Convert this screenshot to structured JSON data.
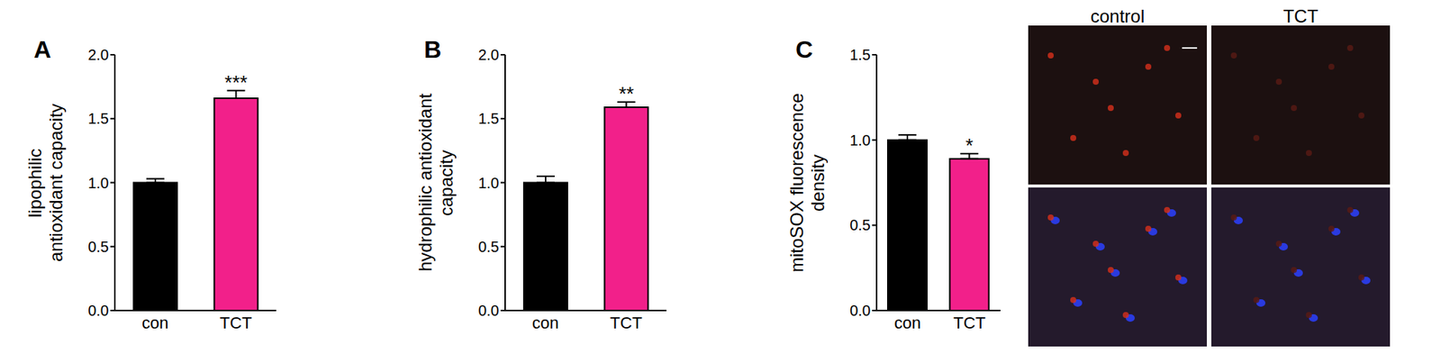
{
  "chart_data": [
    {
      "type": "bar",
      "title": "A",
      "ylabel": [
        "lipophilic",
        "antioxidant capacity"
      ],
      "categories": [
        "con",
        "TCT"
      ],
      "values": [
        1.0,
        1.66
      ],
      "errors": [
        0.03,
        0.06
      ],
      "annotations": [
        null,
        "***"
      ],
      "colors": [
        "#000000",
        "#f2208a"
      ],
      "ylim": [
        0,
        2
      ],
      "yticks": [
        {
          "value": 0,
          "label": "0.0"
        },
        {
          "value": 0.5,
          "label": "0.5"
        },
        {
          "value": 1,
          "label": "1.0"
        },
        {
          "value": 1.5,
          "label": "1.5"
        },
        {
          "value": 2,
          "label": "2.0"
        }
      ]
    },
    {
      "type": "bar",
      "title": "B",
      "ylabel": [
        "hydrophilic antioxidant",
        "capacity"
      ],
      "categories": [
        "con",
        "TCT"
      ],
      "values": [
        1.0,
        1.59
      ],
      "errors": [
        0.05,
        0.04
      ],
      "annotations": [
        null,
        "**"
      ],
      "colors": [
        "#000000",
        "#f2208a"
      ],
      "ylim": [
        0,
        2
      ],
      "yticks": [
        {
          "value": 0,
          "label": "0.0"
        },
        {
          "value": 0.5,
          "label": "0.5"
        },
        {
          "value": 1,
          "label": "1.0"
        },
        {
          "value": 1.5,
          "label": "1.5"
        },
        {
          "value": 2,
          "label": "2.0"
        }
      ]
    },
    {
      "type": "bar",
      "title": "C",
      "ylabel": [
        "mitoSOX fluorescence",
        "density"
      ],
      "categories": [
        "con",
        "TCT"
      ],
      "values": [
        1.0,
        0.89
      ],
      "errors": [
        0.03,
        0.03
      ],
      "annotations": [
        null,
        "*"
      ],
      "colors": [
        "#000000",
        "#f2208a"
      ],
      "ylim": [
        0,
        1.5
      ],
      "yticks": [
        {
          "value": 0,
          "label": "0.0"
        },
        {
          "value": 0.5,
          "label": "0.5"
        },
        {
          "value": 1,
          "label": "1.0"
        },
        {
          "value": 1.5,
          "label": "1.5"
        }
      ]
    }
  ],
  "images": {
    "columns": [
      "control",
      "TCT"
    ]
  }
}
